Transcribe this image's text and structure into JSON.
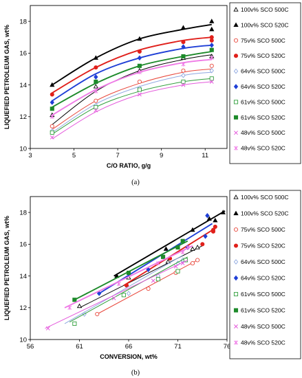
{
  "chart_data": [
    {
      "type": "scatter",
      "panel_label": "(a)",
      "xlabel": "C/O RATIO, g/g",
      "ylabel": "LIQUEFIED PETROLEUM GAS, wt%",
      "xlim": [
        3,
        12
      ],
      "ylim": [
        10,
        19
      ],
      "xticks": [
        3,
        5,
        7,
        9,
        11
      ],
      "yticks": [
        10,
        12,
        14,
        16,
        18
      ],
      "grid": false,
      "legend_position": "right",
      "series": [
        {
          "name": "100v% SCO 500C",
          "color": "#000000",
          "marker": "triangle-open",
          "x": [
            4,
            6,
            8,
            10,
            11.3
          ],
          "y": [
            12.1,
            13.9,
            14.9,
            15.7,
            15.8
          ],
          "fit": [
            11.5,
            13.6,
            14.9,
            15.6,
            15.9
          ]
        },
        {
          "name": "100v% SCO 520C",
          "color": "#000000",
          "marker": "triangle",
          "x": [
            4,
            6,
            8,
            10,
            11.3,
            11.3
          ],
          "y": [
            14.0,
            15.7,
            16.9,
            17.6,
            18.0,
            17.5
          ],
          "fit": [
            14.0,
            15.7,
            16.9,
            17.5,
            17.8
          ]
        },
        {
          "name": "75v% SCO 500C",
          "color": "#e8463a",
          "marker": "circle-open",
          "x": [
            4,
            6,
            8,
            10,
            11.3
          ],
          "y": [
            11.4,
            13.0,
            14.2,
            14.9,
            15.2
          ],
          "fit": [
            11.2,
            13.0,
            14.1,
            14.8,
            15.0
          ]
        },
        {
          "name": "75v% SCO 520C",
          "color": "#e0201b",
          "marker": "circle",
          "x": [
            4,
            6,
            8,
            10,
            11.3,
            11.3
          ],
          "y": [
            13.4,
            15.1,
            16.1,
            16.7,
            17.0,
            16.8
          ],
          "fit": [
            13.5,
            15.1,
            16.2,
            16.8,
            17.0
          ]
        },
        {
          "name": "64v% SCO 500C",
          "color": "#8fa8e0",
          "marker": "diamond-open",
          "x": [
            4,
            6,
            8,
            10,
            11.3
          ],
          "y": [
            11.1,
            12.7,
            13.8,
            14.6,
            14.9
          ],
          "fit": [
            11.0,
            12.8,
            13.9,
            14.6,
            14.8
          ]
        },
        {
          "name": "64v% SCO 520C",
          "color": "#1f3fd6",
          "marker": "diamond",
          "x": [
            4,
            6,
            8,
            10,
            11.3
          ],
          "y": [
            12.9,
            14.5,
            15.7,
            16.4,
            16.5
          ],
          "fit": [
            13.0,
            14.7,
            15.7,
            16.3,
            16.5
          ]
        },
        {
          "name": "61v% SCO 500C",
          "color": "#2e9e3a",
          "marker": "square-open",
          "x": [
            4,
            6,
            8,
            10,
            11.3
          ],
          "y": [
            11.0,
            12.6,
            13.7,
            14.2,
            14.4
          ],
          "fit": [
            10.9,
            12.6,
            13.6,
            14.2,
            14.4
          ]
        },
        {
          "name": "61v% SCO 520C",
          "color": "#1d8a2a",
          "marker": "square",
          "x": [
            4,
            6,
            8,
            10,
            11.3
          ],
          "y": [
            12.5,
            14.2,
            15.2,
            15.8,
            16.2
          ],
          "fit": [
            12.6,
            14.1,
            15.2,
            15.8,
            16.1
          ]
        },
        {
          "name": "48v% SCO 500C",
          "color": "#e45adc",
          "marker": "x",
          "x": [
            4,
            6,
            8,
            10,
            11.3
          ],
          "y": [
            10.7,
            12.4,
            13.4,
            14.0,
            14.2
          ],
          "fit": [
            10.6,
            12.3,
            13.4,
            14.0,
            14.2
          ]
        },
        {
          "name": "48v% SCO 520C",
          "color": "#ef7ae6",
          "marker": "star",
          "x": [
            4,
            6,
            8,
            10,
            11.3
          ],
          "y": [
            12.0,
            13.6,
            14.8,
            15.3,
            15.7
          ],
          "fit": [
            12.1,
            13.7,
            14.8,
            15.4,
            15.6
          ]
        }
      ]
    },
    {
      "type": "scatter",
      "panel_label": "(b)",
      "xlabel": "CONVERSION, wt%",
      "ylabel": "LIQUEFIED PETROLEUM GAS, wt%",
      "xlim": [
        56,
        76
      ],
      "ylim": [
        10,
        19
      ],
      "xticks": [
        56,
        61,
        66,
        71,
        76
      ],
      "yticks": [
        10,
        12,
        14,
        16,
        18
      ],
      "grid": false,
      "legend_position": "right",
      "series": [
        {
          "name": "100v% SCO 500C",
          "color": "#000000",
          "marker": "triangle-open",
          "x": [
            61.0,
            66.0,
            70.0,
            72.5,
            73.0
          ],
          "y": [
            12.1,
            13.9,
            14.9,
            15.7,
            15.8
          ],
          "fit": [
            [
              61.0,
              12.0
            ],
            [
              73.5,
              15.9
            ]
          ]
        },
        {
          "name": "100v% SCO 520C",
          "color": "#000000",
          "marker": "triangle",
          "x": [
            64.8,
            69.8,
            72.5,
            74.8,
            74.2,
            75.6
          ],
          "y": [
            14.0,
            15.7,
            16.9,
            17.5,
            17.6,
            18.0
          ],
          "fit": [
            [
              64.5,
              14.0
            ],
            [
              75.8,
              18.1
            ]
          ]
        },
        {
          "name": "75v% SCO 500C",
          "color": "#e8463a",
          "marker": "circle-open",
          "x": [
            62.8,
            68.0,
            70.8,
            72.5,
            73.0
          ],
          "y": [
            11.6,
            13.2,
            14.2,
            14.8,
            15.0
          ],
          "fit": [
            [
              62.8,
              11.6
            ],
            [
              73.0,
              15.0
            ]
          ]
        },
        {
          "name": "75v% SCO 520C",
          "color": "#e0201b",
          "marker": "circle",
          "x": [
            65.8,
            70.2,
            73.5,
            74.6,
            74.8,
            74.6
          ],
          "y": [
            13.4,
            15.1,
            16.0,
            16.8,
            17.1,
            16.9
          ],
          "fit": [
            [
              65.5,
              13.4
            ],
            [
              74.8,
              17.0
            ]
          ]
        },
        {
          "name": "64v% SCO 500C",
          "color": "#8fa8e0",
          "marker": "diamond-open",
          "x": [
            61.5,
            66.0,
            69.0,
            71.0,
            71.5
          ],
          "y": [
            11.6,
            12.9,
            14.0,
            14.8,
            15.0
          ],
          "fit": [
            [
              59.5,
              11.0
            ],
            [
              71.5,
              15.3
            ]
          ]
        },
        {
          "name": "64v% SCO 520C",
          "color": "#1f3fd6",
          "marker": "diamond",
          "x": [
            63.0,
            68.0,
            72.0,
            73.8,
            74.0
          ],
          "y": [
            12.9,
            14.4,
            15.8,
            16.5,
            17.8
          ],
          "fit": [
            [
              63.0,
              12.9
            ],
            [
              74.5,
              17.3
            ]
          ]
        },
        {
          "name": "61v% SCO 500C",
          "color": "#2e9e3a",
          "marker": "square-open",
          "x": [
            60.5,
            65.5,
            69.0,
            71.0,
            71.8
          ],
          "y": [
            11.0,
            12.8,
            13.8,
            14.3,
            15.0
          ],
          "fit": [
            [
              60.0,
              11.1
            ],
            [
              72.0,
              15.2
            ]
          ]
        },
        {
          "name": "61v% SCO 520C",
          "color": "#1d8a2a",
          "marker": "square",
          "x": [
            60.5,
            66.0,
            69.5,
            71.0,
            71.5
          ],
          "y": [
            12.5,
            14.2,
            15.2,
            15.8,
            16.2
          ],
          "fit": [
            [
              60.5,
              12.5
            ],
            [
              72.0,
              16.2
            ]
          ]
        },
        {
          "name": "48v% SCO 500C",
          "color": "#e45adc",
          "marker": "x",
          "x": [
            57.8,
            64.5,
            68.5,
            70.8,
            71.5
          ],
          "y": [
            10.7,
            12.6,
            13.7,
            14.6,
            14.8
          ],
          "fit": [
            [
              57.5,
              10.7
            ],
            [
              72.0,
              15.0
            ]
          ]
        },
        {
          "name": "48v% SCO 520C",
          "color": "#ef7ae6",
          "marker": "star",
          "x": [
            60.0,
            65.0,
            69.0,
            71.5,
            72.0
          ],
          "y": [
            12.0,
            13.5,
            14.8,
            15.5,
            15.8
          ],
          "fit": [
            [
              59.5,
              12.0
            ],
            [
              72.5,
              15.9
            ]
          ]
        }
      ]
    }
  ]
}
